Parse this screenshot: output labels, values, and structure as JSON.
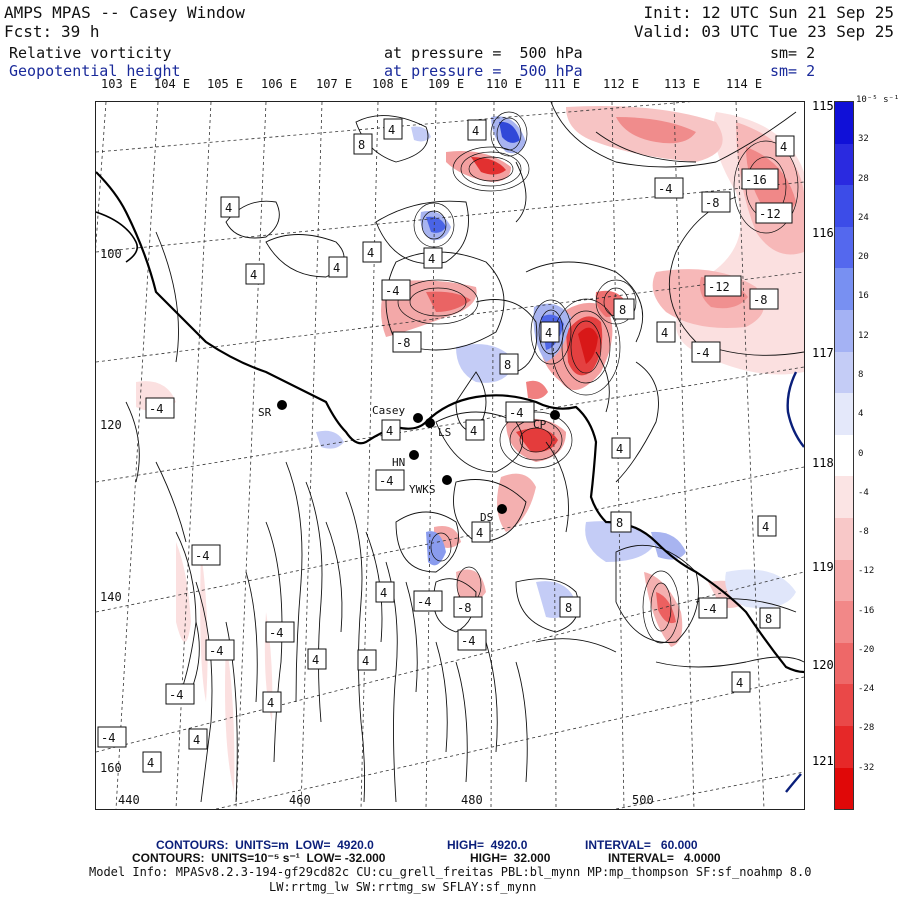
{
  "header": {
    "title": "AMPS MPAS -- Casey Window",
    "fcst_label": "Fcst:",
    "fcst_value": "39 h",
    "init": "Init: 12 UTC Sun 21 Sep 25",
    "valid": "Valid: 03 UTC Tue 23 Sep 25",
    "field1_name": "Relative vorticity",
    "field1_level": "at pressure =  500 hPa",
    "field1_sm": "sm= 2",
    "field2_name": "Geopotential height",
    "field2_level": "at pressure =  500 hPa",
    "field2_sm": "sm= 2"
  },
  "longitude_labels_top": [
    "103 E",
    "104 E",
    "105 E",
    "106 E",
    "107 E",
    "108 E",
    "109 E",
    "110 E",
    "111 E",
    "112 E",
    "113 E",
    "114 E"
  ],
  "longitude_labels_right": [
    "115 E",
    "116 E",
    "117 E",
    "118 E",
    "119 E",
    "120 E",
    "121 E"
  ],
  "axis_x_ticks": [
    "440",
    "460",
    "480",
    "500"
  ],
  "axis_y_ticks": [
    "100",
    "120",
    "140",
    "160"
  ],
  "stations": [
    {
      "name": "SR"
    },
    {
      "name": "Casey"
    },
    {
      "name": "LS"
    },
    {
      "name": "HN"
    },
    {
      "name": "YWKS"
    },
    {
      "name": "DS"
    },
    {
      "name": "CP"
    }
  ],
  "contour_labels": [
    "4",
    "8",
    "-4",
    "-8",
    "-12",
    "-16"
  ],
  "colorbar": {
    "units": "10⁻⁵ s⁻¹",
    "ticks": [
      "32",
      "28",
      "24",
      "20",
      "16",
      "12",
      "8",
      "4",
      "0",
      "-4",
      "-8",
      "-12",
      "-16",
      "-20",
      "-24",
      "-28",
      "-32"
    ],
    "colors_high_to_low": [
      "#1010d8",
      "#2a2ae0",
      "#3c4ce8",
      "#5468ee",
      "#7890f2",
      "#a4b2f4",
      "#c4ccf6",
      "#e4e8fa",
      "#ffffff",
      "#fbe4e4",
      "#f8c8c8",
      "#f5a8a8",
      "#f28888",
      "#ee6868",
      "#ea4848",
      "#e62828",
      "#e00808"
    ]
  },
  "footer": {
    "line1_a": "CONTOURS:  UNITS=m  LOW=  4920.0",
    "line1_b": "HIGH=  4920.0",
    "line1_c": "INTERVAL=   60.000",
    "line2_a": "CONTOURS:  UNITS=10⁻⁵ s⁻¹  LOW= -32.000",
    "line2_b": "HIGH=  32.000",
    "line2_c": "INTERVAL=   4.0000",
    "line3": "Model Info: MPASv8.2.3-194-gf29cd82c CU:cu_grell_freitas PBL:bl_mynn MP:mp_thompson SF:sf_noahmp 8.0",
    "line4": "LW:rrtmg_lw SW:rrtmg_sw SFLAY:sf_mynn"
  }
}
